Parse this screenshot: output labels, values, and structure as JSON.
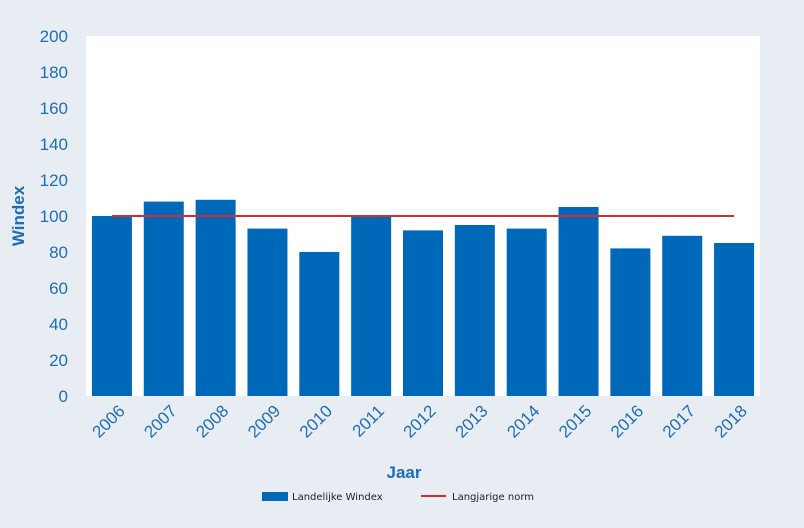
{
  "chart_data": {
    "type": "bar",
    "categories": [
      "2006",
      "2007",
      "2008",
      "2009",
      "2010",
      "2011",
      "2012",
      "2013",
      "2014",
      "2015",
      "2016",
      "2017",
      "2018"
    ],
    "series": [
      {
        "name": "Landelijke Windex",
        "type": "bar",
        "values": [
          100,
          108,
          109,
          93,
          80,
          100,
          92,
          95,
          93,
          105,
          82,
          89,
          85
        ]
      },
      {
        "name": "Langjarige norm",
        "type": "line",
        "values": [
          100,
          100,
          100,
          100,
          100,
          100,
          100,
          100,
          100,
          100,
          100,
          100,
          100
        ]
      }
    ],
    "title": "",
    "xlabel": "Jaar",
    "ylabel": "Windex",
    "ylim": [
      0,
      200
    ],
    "yticks": [
      "0",
      "20",
      "40",
      "60",
      "80",
      "100",
      "120",
      "140",
      "160",
      "180",
      "200"
    ],
    "grid": false,
    "legend": "bottom",
    "colors": {
      "bar": "#0068b9",
      "line": "#d92b2f",
      "text": "#1f6eb5",
      "plot_bg": "#ffffff",
      "page_bg": "#e8ecf3"
    }
  }
}
